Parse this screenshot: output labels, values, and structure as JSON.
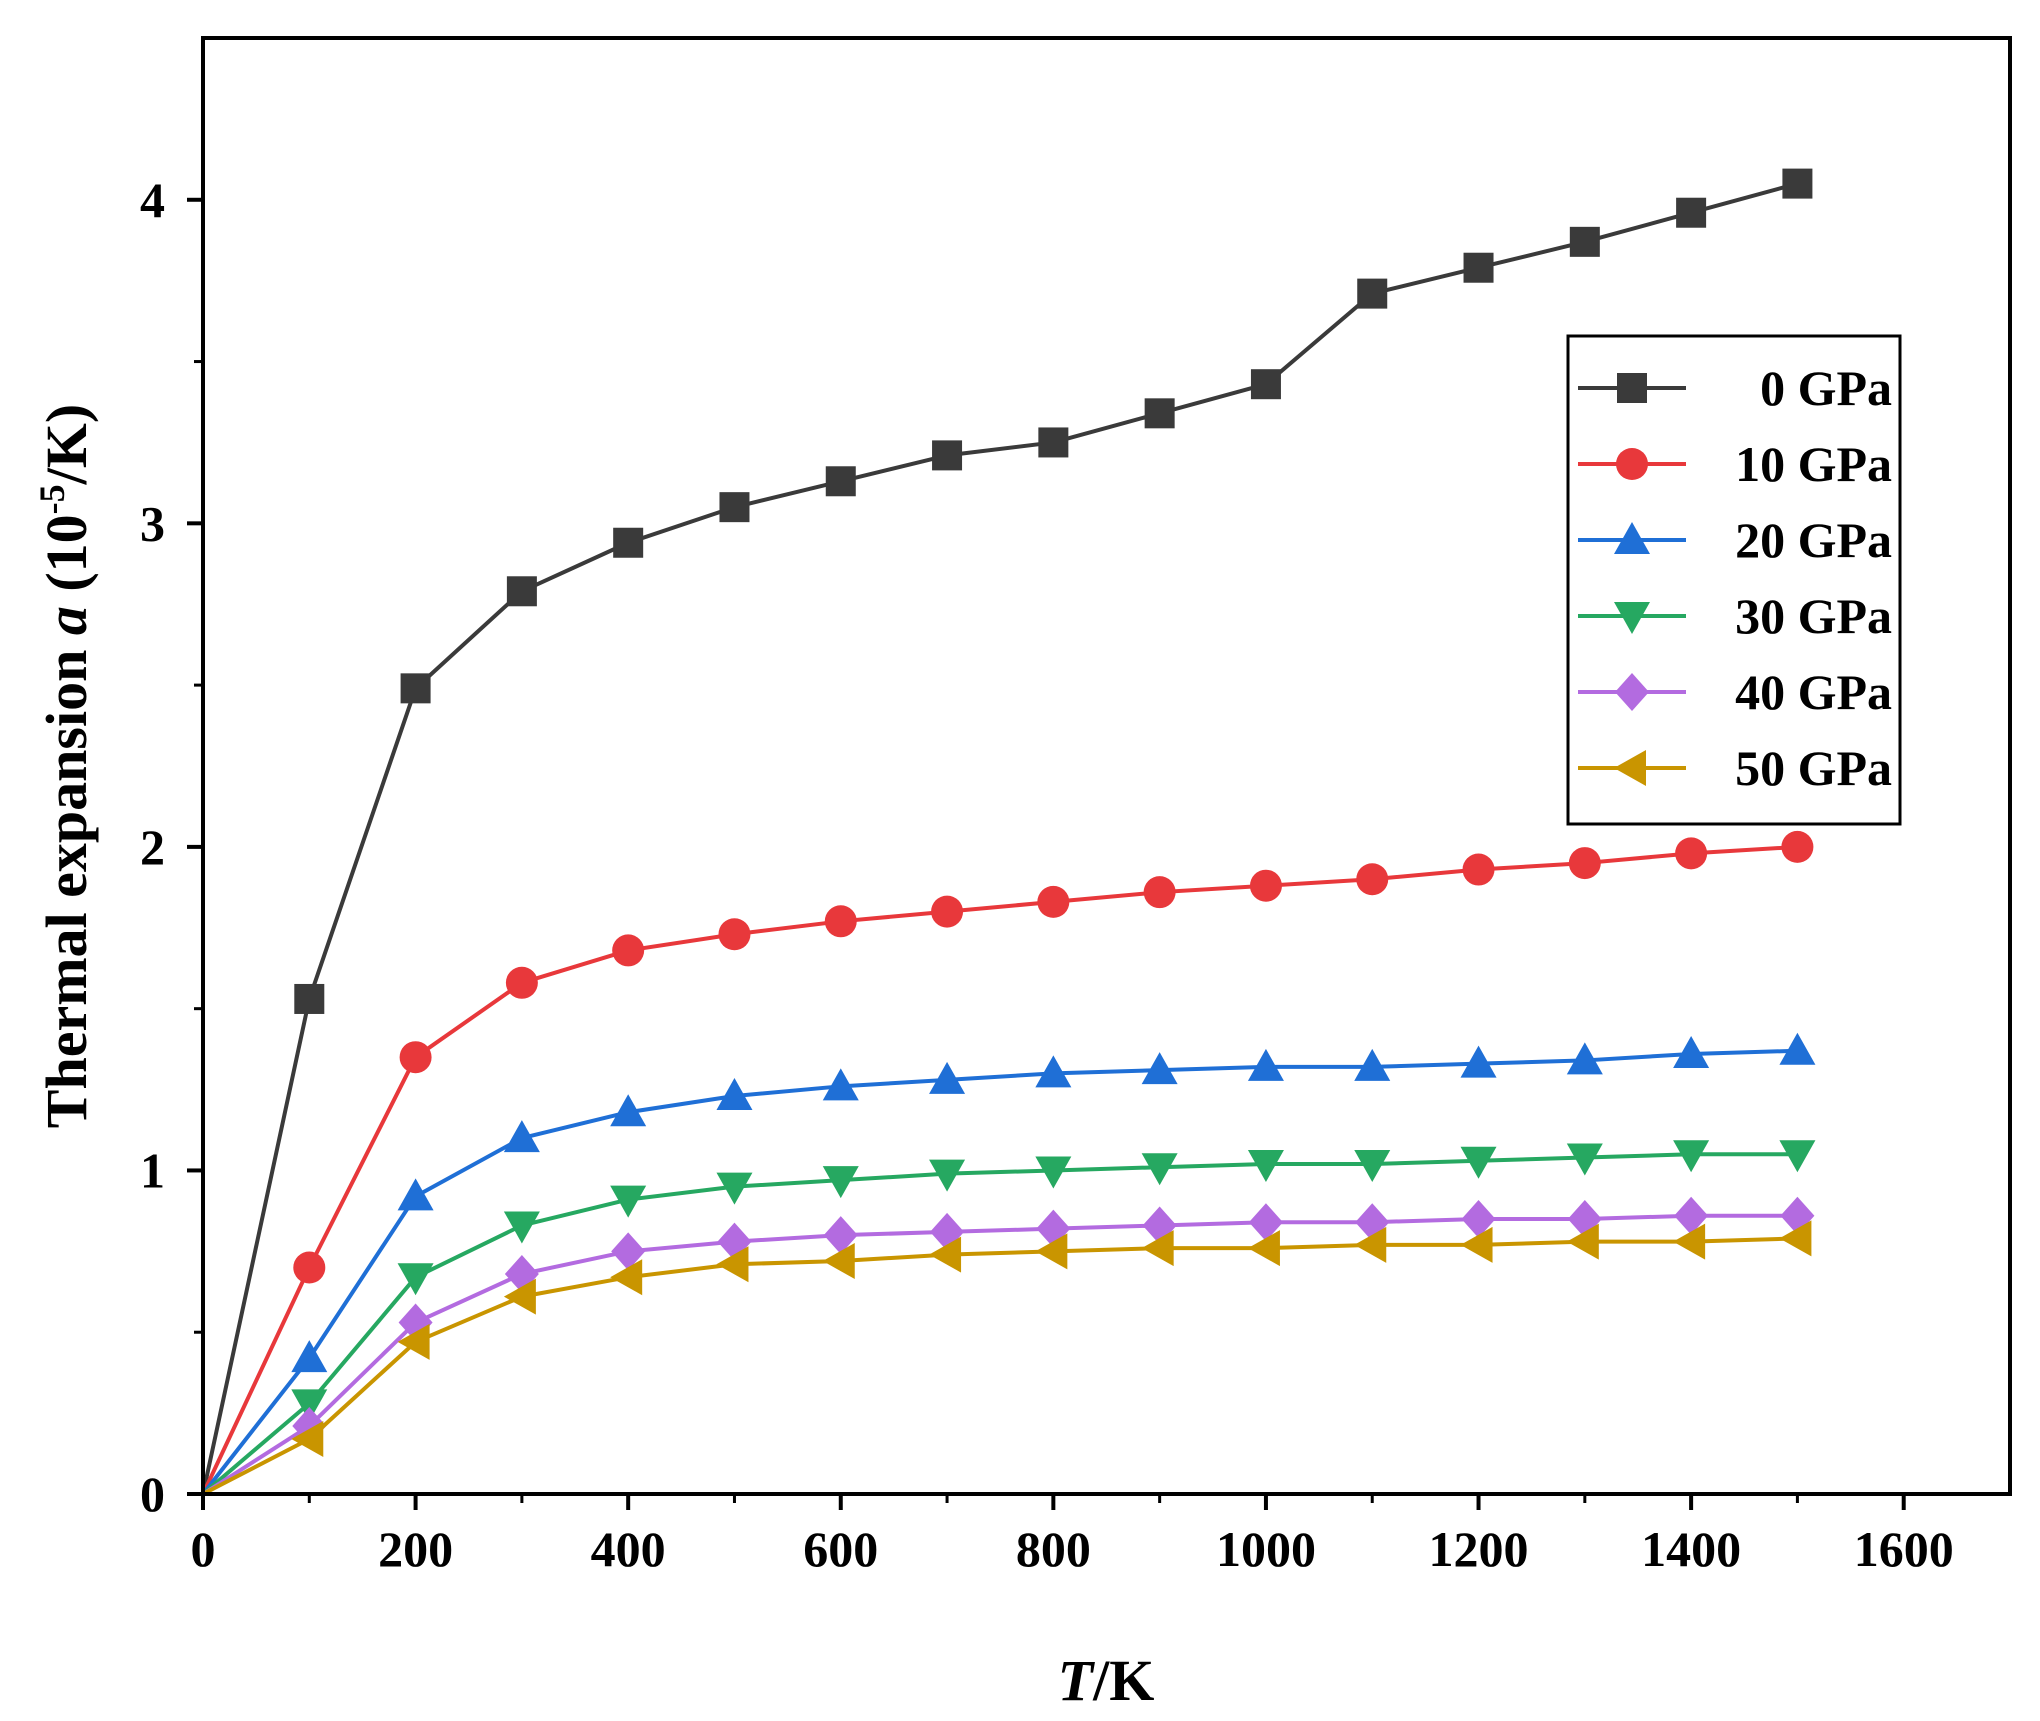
{
  "chart_data": {
    "type": "line",
    "title": "",
    "xlabel_italic": "T",
    "xlabel_rest": "/K",
    "ylabel_prefix": "Thermal expansion ",
    "ylabel_symbol": "a",
    "ylabel_unit_base": " (10",
    "ylabel_unit_exp": "-5",
    "ylabel_unit_end": "/K)",
    "xlim": [
      0,
      1700
    ],
    "ylim": [
      0,
      4.5
    ],
    "x_ticks": [
      0,
      200,
      400,
      600,
      800,
      1000,
      1200,
      1400,
      1600
    ],
    "y_ticks": [
      0,
      1,
      2,
      3,
      4
    ],
    "legend_position": "right-upper",
    "x": [
      0,
      100,
      200,
      300,
      400,
      500,
      600,
      700,
      800,
      900,
      1000,
      1100,
      1200,
      1300,
      1400,
      1500
    ],
    "series": [
      {
        "name": "0 GPa",
        "color": "#3a3a3a",
        "marker": "square",
        "values": [
          0,
          1.53,
          2.49,
          2.79,
          2.94,
          3.05,
          3.13,
          3.21,
          3.25,
          3.34,
          3.43,
          3.71,
          3.79,
          3.87,
          3.96,
          4.05
        ]
      },
      {
        "name": "10 GPa",
        "color": "#e8383b",
        "marker": "circle",
        "values": [
          0,
          0.7,
          1.35,
          1.58,
          1.68,
          1.73,
          1.77,
          1.8,
          1.83,
          1.86,
          1.88,
          1.9,
          1.93,
          1.95,
          1.98,
          2.0
        ]
      },
      {
        "name": "20 GPa",
        "color": "#1f6fd6",
        "marker": "triangle-up",
        "values": [
          0,
          0.42,
          0.92,
          1.1,
          1.18,
          1.23,
          1.26,
          1.28,
          1.3,
          1.31,
          1.32,
          1.32,
          1.33,
          1.34,
          1.36,
          1.37
        ]
      },
      {
        "name": "30 GPa",
        "color": "#26a861",
        "marker": "triangle-down",
        "values": [
          0,
          0.28,
          0.67,
          0.83,
          0.91,
          0.95,
          0.97,
          0.99,
          1.0,
          1.01,
          1.02,
          1.02,
          1.03,
          1.04,
          1.05,
          1.05
        ]
      },
      {
        "name": "40 GPa",
        "color": "#b36be0",
        "marker": "diamond",
        "values": [
          0,
          0.21,
          0.53,
          0.68,
          0.75,
          0.78,
          0.8,
          0.81,
          0.82,
          0.83,
          0.84,
          0.84,
          0.85,
          0.85,
          0.86,
          0.86
        ]
      },
      {
        "name": "50 GPa",
        "color": "#c99500",
        "marker": "triangle-left",
        "values": [
          0,
          0.17,
          0.47,
          0.61,
          0.67,
          0.71,
          0.72,
          0.74,
          0.75,
          0.76,
          0.76,
          0.77,
          0.77,
          0.78,
          0.78,
          0.79
        ]
      }
    ]
  }
}
